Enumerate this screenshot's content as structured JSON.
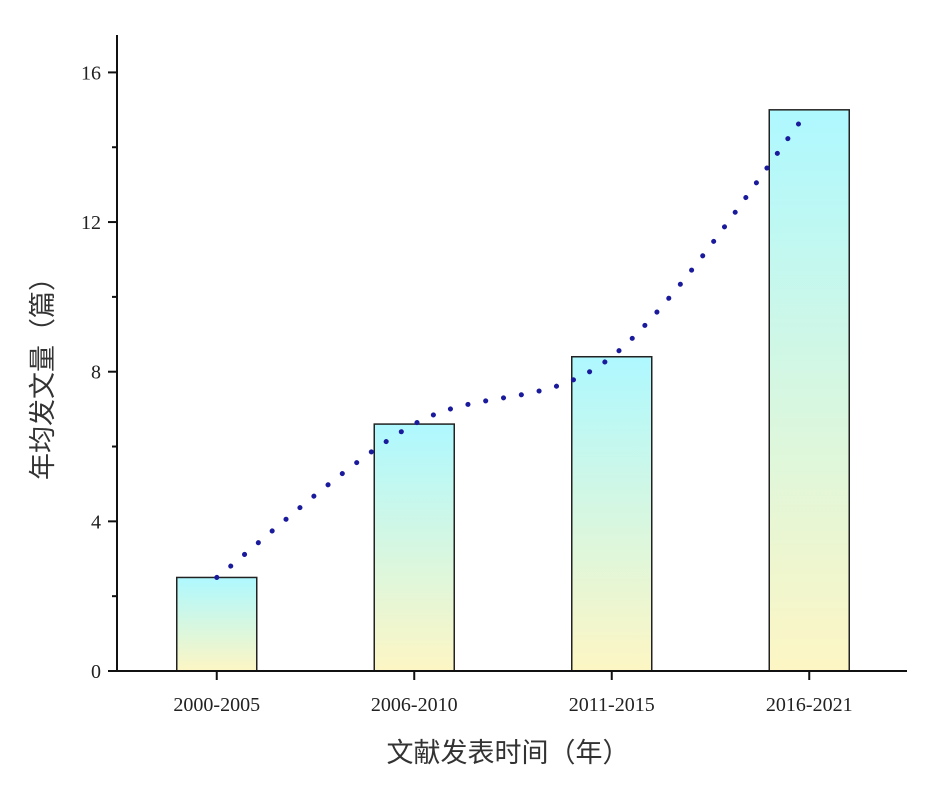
{
  "chart_data": {
    "type": "bar",
    "categories": [
      "2000-2005",
      "2006-2010",
      "2011-2015",
      "2016-2021"
    ],
    "values": [
      2.5,
      6.6,
      8.4,
      15.0
    ],
    "xlabel": "文献发表时间（年）",
    "ylabel": "年均发文量（篇）",
    "ylim": [
      0,
      17
    ],
    "yticks": [
      0,
      4,
      8,
      12,
      16
    ],
    "grid": false,
    "trendline": {
      "style": "dotted",
      "color": "#1a1a9c"
    },
    "bar_gradient": {
      "top": "#aef8ff",
      "bottom": "#fdf6c4"
    }
  }
}
